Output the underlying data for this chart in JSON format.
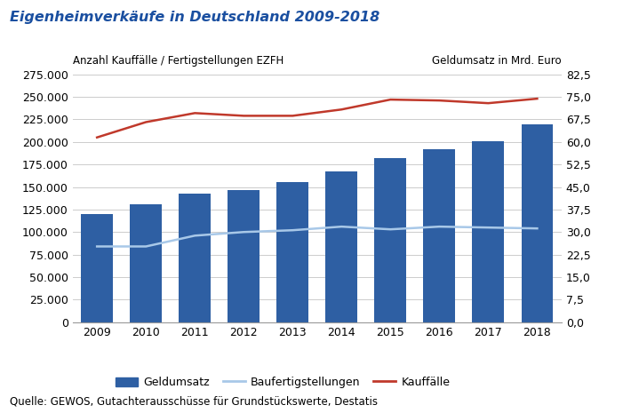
{
  "title": "Eigenheimverkäufe in Deutschland 2009-2018",
  "years": [
    2009,
    2010,
    2011,
    2012,
    2013,
    2014,
    2015,
    2016,
    2017,
    2018
  ],
  "geldumsatz_bars": [
    120000,
    131000,
    143000,
    147000,
    155000,
    167000,
    182000,
    192000,
    201000,
    220000
  ],
  "baufertigstellungen": [
    84000,
    84000,
    96000,
    100000,
    102000,
    106000,
    103000,
    106000,
    105000,
    104000
  ],
  "kauffaelle": [
    205000,
    222000,
    232000,
    229000,
    229000,
    236000,
    247000,
    246000,
    243000,
    248000
  ],
  "bar_color": "#2E5FA3",
  "bau_color": "#A8C8E8",
  "kauf_color": "#C0392B",
  "ylim_left": [
    0,
    275000
  ],
  "ylim_right": [
    0,
    82.5
  ],
  "yticks_left": [
    0,
    25000,
    50000,
    75000,
    100000,
    125000,
    150000,
    175000,
    200000,
    225000,
    250000,
    275000
  ],
  "yticks_right": [
    0.0,
    7.5,
    15.0,
    22.5,
    30.0,
    37.5,
    45.0,
    52.5,
    60.0,
    67.5,
    75.0,
    82.5
  ],
  "ylabel_left": "Anzahl Kauffälle / Fertigstellungen EZFH",
  "ylabel_right": "Geldumsatz in Mrd. Euro",
  "source": "Quelle: GEWOS, Gutachterausschüsse für Grundstückswerte, Destatis",
  "legend_geldumsatz": "Geldumsatz",
  "legend_bau": "Baufertigstellungen",
  "legend_kauf": "Kauffälle",
  "background_color": "#FFFFFF",
  "grid_color": "#CCCCCC",
  "title_color": "#1A4FA0",
  "title_fontsize": 11.5,
  "axis_label_fontsize": 8.5,
  "tick_fontsize": 9,
  "legend_fontsize": 9,
  "source_fontsize": 8.5
}
